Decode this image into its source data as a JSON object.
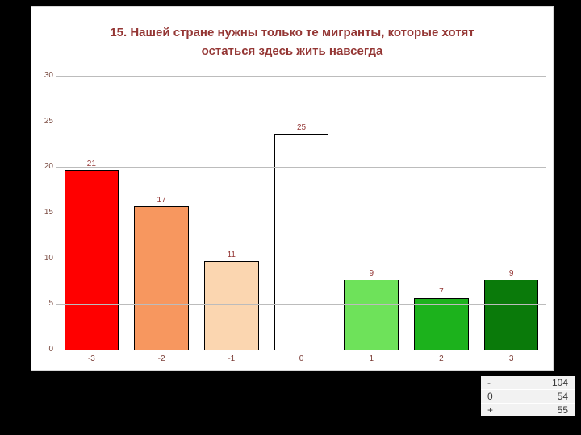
{
  "colors": {
    "slide_background": "#000000",
    "panel_background": "#ffffff",
    "accent_text": "#943634",
    "gridline": "#bcbcbc"
  },
  "chart_data": {
    "type": "bar",
    "title": "15. Нашей стране нужны только те мигранты, которые хотят остаться здесь жить навсегда",
    "categories": [
      "-3",
      "-2",
      "-1",
      "0",
      "1",
      "2",
      "3"
    ],
    "values": [
      21,
      17,
      11,
      25,
      9,
      7,
      9
    ],
    "colors": [
      "#ff0000",
      "#f7975f",
      "#fbd6b0",
      "#ffffff",
      "#6ee25a",
      "#1cb21c",
      "#0a7a0a"
    ],
    "xlabel": "",
    "ylabel": "",
    "ylim": [
      0,
      30
    ],
    "yticks": [
      0,
      5,
      10,
      15,
      20,
      25,
      30
    ],
    "grid": true,
    "legend": false,
    "bar_value_labels": [
      21,
      17,
      11,
      25,
      9,
      7,
      9
    ]
  },
  "summary": {
    "rows": [
      {
        "label": "-",
        "value": 104
      },
      {
        "label": "0",
        "value": 54
      },
      {
        "label": "+",
        "value": 55
      }
    ]
  }
}
